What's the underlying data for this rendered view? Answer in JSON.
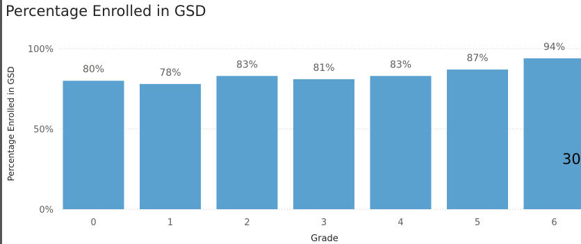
{
  "chart_data": {
    "type": "bar",
    "title": "Percentage Enrolled in GSD",
    "xlabel": "Grade",
    "ylabel": "Percentage Enrolled in GSD",
    "categories": [
      "0",
      "1",
      "2",
      "3",
      "4",
      "5",
      "6"
    ],
    "values": [
      80,
      78,
      83,
      81,
      83,
      87,
      94
    ],
    "value_labels": [
      "80%",
      "78%",
      "83%",
      "81%",
      "83%",
      "87%",
      "94%"
    ],
    "y_ticks": [
      {
        "value": 0,
        "label": "0%"
      },
      {
        "value": 50,
        "label": "50%"
      },
      {
        "value": 100,
        "label": "100%"
      }
    ],
    "ylim": [
      0,
      100
    ],
    "grid": true,
    "legend": "none",
    "bar_color": "#5BA1CF"
  },
  "overlay": {
    "text": "30"
  }
}
